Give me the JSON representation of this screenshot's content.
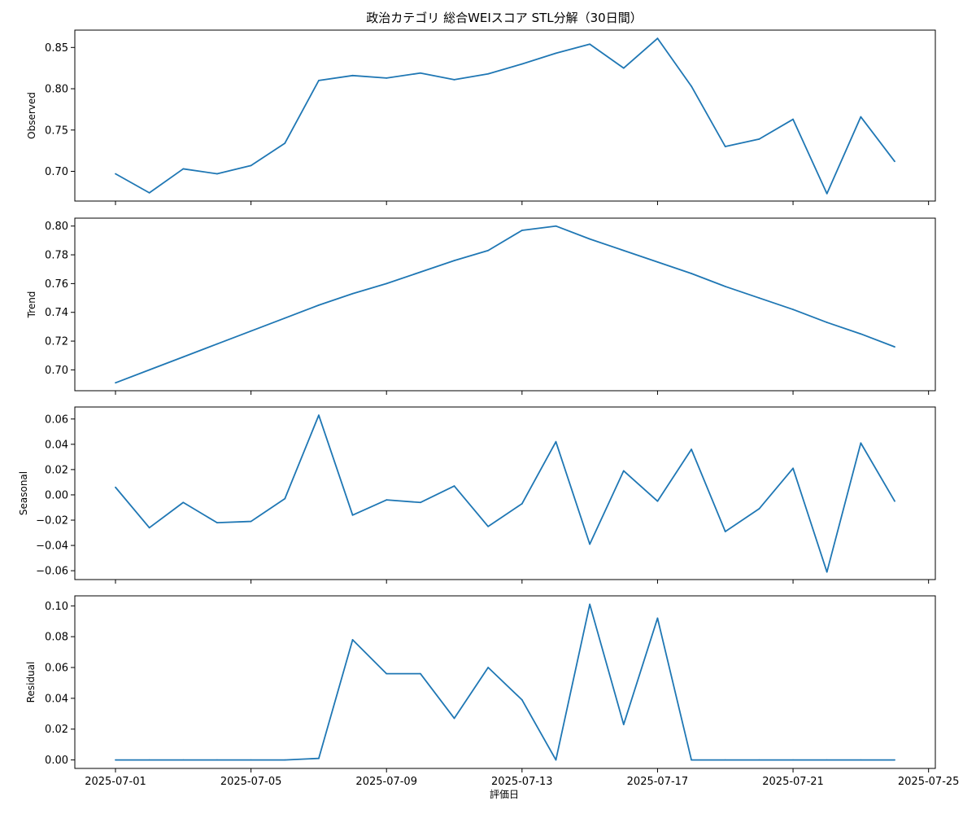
{
  "title": "政治カテゴリ 総合WEIスコア STL分解（30日間）",
  "xlabel": "評価日",
  "colors": {
    "line": "#1f77b4",
    "frame": "#000000",
    "background": "#ffffff"
  },
  "x_ticks": [
    "2025-07-01",
    "2025-07-05",
    "2025-07-09",
    "2025-07-13",
    "2025-07-17",
    "2025-07-21",
    "2025-07-25"
  ],
  "chart_data": [
    {
      "type": "line",
      "ylabel": "Observed",
      "x": [
        "2025-07-01",
        "2025-07-02",
        "2025-07-03",
        "2025-07-04",
        "2025-07-05",
        "2025-07-06",
        "2025-07-07",
        "2025-07-08",
        "2025-07-09",
        "2025-07-10",
        "2025-07-11",
        "2025-07-12",
        "2025-07-13",
        "2025-07-14",
        "2025-07-15",
        "2025-07-16",
        "2025-07-17",
        "2025-07-18",
        "2025-07-19",
        "2025-07-20",
        "2025-07-21",
        "2025-07-22",
        "2025-07-23",
        "2025-07-24"
      ],
      "values": [
        0.697,
        0.674,
        0.703,
        0.697,
        0.707,
        0.734,
        0.81,
        0.816,
        0.813,
        0.819,
        0.811,
        0.818,
        0.83,
        0.843,
        0.854,
        0.825,
        0.861,
        0.803,
        0.73,
        0.739,
        0.763,
        0.673,
        0.766,
        0.712
      ],
      "ylim": [
        0.664,
        0.871
      ],
      "yticks": [
        0.7,
        0.75,
        0.8,
        0.85
      ],
      "ytick_labels": [
        "0.70",
        "0.75",
        "0.80",
        "0.85"
      ]
    },
    {
      "type": "line",
      "ylabel": "Trend",
      "x": [
        "2025-07-01",
        "2025-07-02",
        "2025-07-03",
        "2025-07-04",
        "2025-07-05",
        "2025-07-06",
        "2025-07-07",
        "2025-07-08",
        "2025-07-09",
        "2025-07-10",
        "2025-07-11",
        "2025-07-12",
        "2025-07-13",
        "2025-07-14",
        "2025-07-15",
        "2025-07-16",
        "2025-07-17",
        "2025-07-18",
        "2025-07-19",
        "2025-07-20",
        "2025-07-21",
        "2025-07-22",
        "2025-07-23",
        "2025-07-24"
      ],
      "values": [
        0.691,
        0.7,
        0.709,
        0.718,
        0.727,
        0.736,
        0.745,
        0.753,
        0.76,
        0.768,
        0.776,
        0.783,
        0.797,
        0.8,
        0.791,
        0.783,
        0.775,
        0.767,
        0.758,
        0.75,
        0.742,
        0.733,
        0.725,
        0.716
      ],
      "ylim": [
        0.6855,
        0.8055
      ],
      "yticks": [
        0.7,
        0.72,
        0.74,
        0.76,
        0.78,
        0.8
      ],
      "ytick_labels": [
        "0.70",
        "0.72",
        "0.74",
        "0.76",
        "0.78",
        "0.80"
      ]
    },
    {
      "type": "line",
      "ylabel": "Seasonal",
      "x": [
        "2025-07-01",
        "2025-07-02",
        "2025-07-03",
        "2025-07-04",
        "2025-07-05",
        "2025-07-06",
        "2025-07-07",
        "2025-07-08",
        "2025-07-09",
        "2025-07-10",
        "2025-07-11",
        "2025-07-12",
        "2025-07-13",
        "2025-07-14",
        "2025-07-15",
        "2025-07-16",
        "2025-07-17",
        "2025-07-18",
        "2025-07-19",
        "2025-07-20",
        "2025-07-21",
        "2025-07-22",
        "2025-07-23",
        "2025-07-24"
      ],
      "values": [
        0.006,
        -0.026,
        -0.006,
        -0.022,
        -0.021,
        -0.003,
        0.063,
        -0.016,
        -0.004,
        -0.006,
        0.007,
        -0.025,
        -0.007,
        0.042,
        -0.039,
        0.019,
        -0.005,
        0.036,
        -0.029,
        -0.011,
        0.021,
        -0.061,
        0.041,
        -0.005
      ],
      "ylim": [
        -0.067,
        0.0695
      ],
      "yticks": [
        -0.06,
        -0.04,
        -0.02,
        0.0,
        0.02,
        0.04,
        0.06
      ],
      "ytick_labels": [
        "−0.06",
        "−0.04",
        "−0.02",
        "0.00",
        "0.02",
        "0.04",
        "0.06"
      ]
    },
    {
      "type": "line",
      "ylabel": "Residual",
      "x": [
        "2025-07-01",
        "2025-07-02",
        "2025-07-03",
        "2025-07-04",
        "2025-07-05",
        "2025-07-06",
        "2025-07-07",
        "2025-07-08",
        "2025-07-09",
        "2025-07-10",
        "2025-07-11",
        "2025-07-12",
        "2025-07-13",
        "2025-07-14",
        "2025-07-15",
        "2025-07-16",
        "2025-07-17",
        "2025-07-18",
        "2025-07-19",
        "2025-07-20",
        "2025-07-21",
        "2025-07-22",
        "2025-07-23",
        "2025-07-24"
      ],
      "values": [
        0.0,
        0.0,
        0.0,
        0.0,
        0.0,
        0.0,
        0.001,
        0.078,
        0.056,
        0.056,
        0.027,
        0.06,
        0.039,
        0.0,
        0.101,
        0.023,
        0.092,
        0.0,
        0.0,
        0.0,
        0.0,
        0.0,
        0.0,
        0.0
      ],
      "ylim": [
        -0.0055,
        0.1065
      ],
      "yticks": [
        0.0,
        0.02,
        0.04,
        0.06,
        0.08,
        0.1
      ],
      "ytick_labels": [
        "0.00",
        "0.02",
        "0.04",
        "0.06",
        "0.08",
        "0.10"
      ]
    }
  ]
}
